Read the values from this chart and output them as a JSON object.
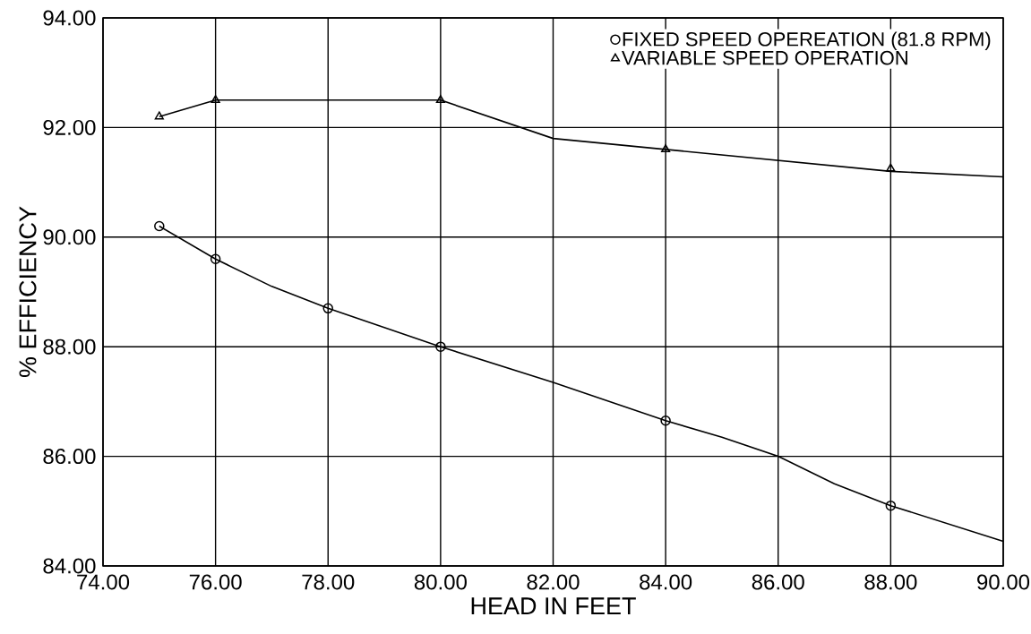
{
  "chart_data": {
    "type": "line",
    "xlabel": "HEAD IN FEET",
    "ylabel": "% EFFICIENCY",
    "xlim": [
      74,
      90
    ],
    "ylim": [
      84,
      94
    ],
    "xticks": [
      {
        "value": 74,
        "label": "74.00"
      },
      {
        "value": 76,
        "label": "76.00"
      },
      {
        "value": 78,
        "label": "78.00"
      },
      {
        "value": 80,
        "label": "80.00"
      },
      {
        "value": 82,
        "label": "82.00"
      },
      {
        "value": 84,
        "label": "84.00"
      },
      {
        "value": 86,
        "label": "86.00"
      },
      {
        "value": 88,
        "label": "88.00"
      },
      {
        "value": 90,
        "label": "90.00"
      }
    ],
    "yticks": [
      {
        "value": 84,
        "label": "84.00"
      },
      {
        "value": 86,
        "label": "86.00"
      },
      {
        "value": 88,
        "label": "88.00"
      },
      {
        "value": 90,
        "label": "90.00"
      },
      {
        "value": 92,
        "label": "92.00"
      },
      {
        "value": 94,
        "label": "94.00"
      }
    ],
    "grid": true,
    "legend": "top right",
    "series": [
      {
        "color": "#000000",
        "marker": "none",
        "x": [
          75,
          76,
          77,
          78,
          80,
          82,
          84,
          85,
          86,
          87,
          88,
          90
        ],
        "values": [
          90.2,
          89.6,
          89.1,
          88.7,
          88.0,
          87.35,
          86.65,
          86.35,
          86.0,
          85.5,
          85.1,
          84.45
        ]
      },
      {
        "type": "scatter",
        "name": "FIXED SPEED OPEREATION (81.8 RPM)",
        "color": "#000000",
        "marker": "circle",
        "x": [
          75,
          76,
          78,
          80,
          84,
          88
        ],
        "values": [
          90.2,
          89.6,
          88.7,
          88.0,
          86.65,
          85.1
        ]
      },
      {
        "color": "#000000",
        "marker": "none",
        "x": [
          75,
          76,
          80,
          82,
          84,
          88,
          90
        ],
        "values": [
          92.2,
          92.5,
          92.5,
          91.8,
          91.6,
          91.2,
          91.1
        ]
      },
      {
        "type": "scatter",
        "name": "VARIABLE SPEED OPERATION",
        "color": "#000000",
        "marker": "triangle",
        "x": [
          75,
          76,
          80,
          84,
          88
        ],
        "values": [
          92.2,
          92.5,
          92.5,
          91.6,
          91.25
        ]
      }
    ]
  }
}
